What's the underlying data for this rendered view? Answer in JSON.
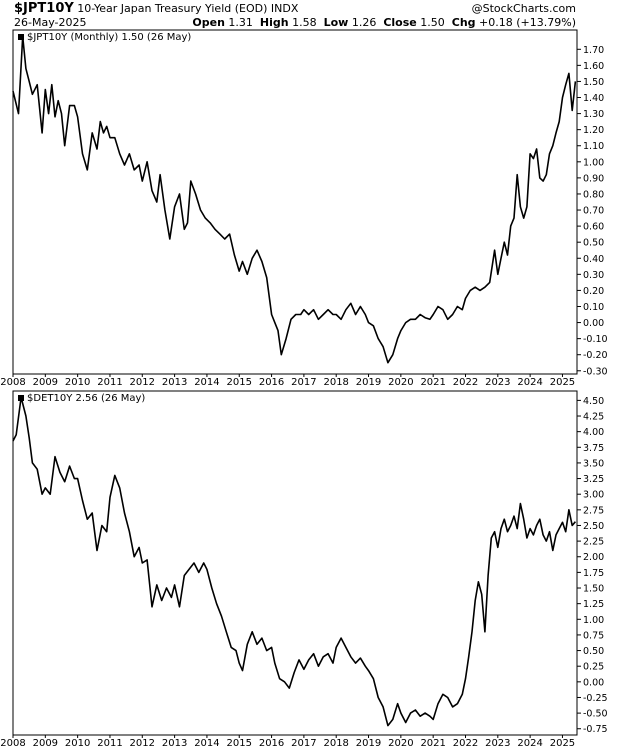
{
  "header": {
    "symbol": "$JPT10Y",
    "name": "10-Year Japan Treasury Yield (EOD)",
    "exchange": "INDX",
    "date": "26-May-2025",
    "watermark": "@StockCharts.com",
    "open_label": "Open",
    "open": "1.31",
    "high_label": "High",
    "high": "1.58",
    "low_label": "Low",
    "low": "1.26",
    "close_label": "Close",
    "close": "1.50",
    "chg_label": "Chg",
    "chg": "+0.18 (+13.79%)"
  },
  "chart_data": [
    {
      "type": "line",
      "legend": "$JPT10Y (Monthly) 1.50 (26 May)",
      "ylim": [
        -0.32,
        1.82
      ],
      "yticks": [
        -0.3,
        -0.2,
        -0.1,
        0.0,
        0.1,
        0.2,
        0.3,
        0.4,
        0.5,
        0.6,
        0.7,
        0.8,
        0.9,
        1.0,
        1.1,
        1.2,
        1.3,
        1.4,
        1.5,
        1.6,
        1.7
      ],
      "ytick_labels": [
        "-0.30",
        "-0.20",
        "-0.10",
        "0.00",
        "0.10",
        "0.20",
        "0.30",
        "0.40",
        "0.50",
        "0.60",
        "0.70",
        "0.80",
        "0.90",
        "1.00",
        "1.10",
        "1.20",
        "1.30",
        "1.40",
        "1.50",
        "1.60",
        "1.70"
      ],
      "xlim": [
        2008.0,
        2025.45
      ],
      "xticks": [
        2008,
        2009,
        2010,
        2011,
        2012,
        2013,
        2014,
        2015,
        2016,
        2017,
        2018,
        2019,
        2020,
        2021,
        2022,
        2023,
        2024,
        2025
      ],
      "xtick_labels": [
        "2008",
        "2009",
        "2010",
        "2011",
        "2012",
        "2013",
        "2014",
        "2015",
        "2016",
        "2017",
        "2018",
        "2019",
        "2020",
        "2021",
        "2022",
        "2023",
        "2024",
        "2025"
      ],
      "x": [
        2008.0,
        2008.17,
        2008.3,
        2008.4,
        2008.5,
        2008.6,
        2008.75,
        2008.9,
        2009.0,
        2009.1,
        2009.2,
        2009.3,
        2009.4,
        2009.5,
        2009.6,
        2009.75,
        2009.9,
        2010.0,
        2010.15,
        2010.3,
        2010.45,
        2010.6,
        2010.7,
        2010.8,
        2010.9,
        2011.0,
        2011.15,
        2011.3,
        2011.45,
        2011.6,
        2011.75,
        2011.9,
        2012.0,
        2012.15,
        2012.3,
        2012.45,
        2012.55,
        2012.7,
        2012.85,
        2013.0,
        2013.15,
        2013.3,
        2013.4,
        2013.5,
        2013.65,
        2013.8,
        2013.95,
        2014.1,
        2014.25,
        2014.4,
        2014.55,
        2014.7,
        2014.85,
        2015.0,
        2015.1,
        2015.25,
        2015.4,
        2015.55,
        2015.7,
        2015.85,
        2016.0,
        2016.1,
        2016.2,
        2016.3,
        2016.45,
        2016.6,
        2016.75,
        2016.9,
        2017.0,
        2017.15,
        2017.3,
        2017.45,
        2017.6,
        2017.75,
        2017.9,
        2018.0,
        2018.15,
        2018.3,
        2018.45,
        2018.6,
        2018.75,
        2018.9,
        2019.0,
        2019.15,
        2019.3,
        2019.45,
        2019.6,
        2019.75,
        2019.9,
        2020.0,
        2020.15,
        2020.3,
        2020.45,
        2020.6,
        2020.75,
        2020.9,
        2021.0,
        2021.15,
        2021.3,
        2021.45,
        2021.6,
        2021.75,
        2021.9,
        2022.0,
        2022.15,
        2022.3,
        2022.45,
        2022.6,
        2022.75,
        2022.9,
        2023.0,
        2023.1,
        2023.2,
        2023.3,
        2023.4,
        2023.5,
        2023.6,
        2023.7,
        2023.8,
        2023.9,
        2024.0,
        2024.1,
        2024.2,
        2024.3,
        2024.4,
        2024.5,
        2024.6,
        2024.7,
        2024.8,
        2024.9,
        2025.0,
        2025.1,
        2025.2,
        2025.3,
        2025.4
      ],
      "y": [
        1.44,
        1.3,
        1.78,
        1.58,
        1.5,
        1.42,
        1.48,
        1.18,
        1.45,
        1.3,
        1.48,
        1.28,
        1.38,
        1.3,
        1.1,
        1.35,
        1.35,
        1.28,
        1.05,
        0.95,
        1.18,
        1.08,
        1.25,
        1.18,
        1.22,
        1.15,
        1.15,
        1.05,
        0.98,
        1.05,
        0.95,
        0.98,
        0.88,
        1.0,
        0.82,
        0.75,
        0.92,
        0.7,
        0.52,
        0.72,
        0.8,
        0.58,
        0.62,
        0.88,
        0.8,
        0.7,
        0.65,
        0.62,
        0.58,
        0.55,
        0.52,
        0.55,
        0.42,
        0.32,
        0.38,
        0.3,
        0.4,
        0.45,
        0.38,
        0.28,
        0.05,
        0.0,
        -0.05,
        -0.2,
        -0.1,
        0.02,
        0.05,
        0.05,
        0.08,
        0.05,
        0.08,
        0.02,
        0.05,
        0.08,
        0.05,
        0.05,
        0.02,
        0.08,
        0.12,
        0.05,
        0.1,
        0.05,
        0.0,
        -0.02,
        -0.1,
        -0.15,
        -0.25,
        -0.2,
        -0.1,
        -0.05,
        0.0,
        0.02,
        0.02,
        0.05,
        0.03,
        0.02,
        0.05,
        0.1,
        0.08,
        0.02,
        0.05,
        0.1,
        0.08,
        0.15,
        0.2,
        0.22,
        0.2,
        0.22,
        0.25,
        0.45,
        0.3,
        0.4,
        0.5,
        0.42,
        0.6,
        0.65,
        0.92,
        0.72,
        0.65,
        0.72,
        1.05,
        1.02,
        1.08,
        0.9,
        0.88,
        0.92,
        1.05,
        1.1,
        1.18,
        1.25,
        1.4,
        1.48,
        1.55,
        1.32,
        1.5
      ]
    },
    {
      "type": "line",
      "legend": "$DET10Y 2.56 (26 May)",
      "ylim": [
        -0.85,
        4.65
      ],
      "yticks": [
        -0.75,
        -0.5,
        -0.25,
        0.0,
        0.25,
        0.5,
        0.75,
        1.0,
        1.25,
        1.5,
        1.75,
        2.0,
        2.25,
        2.5,
        2.75,
        3.0,
        3.25,
        3.5,
        3.75,
        4.0,
        4.25,
        4.5
      ],
      "ytick_labels": [
        "-0.75",
        "-0.50",
        "-0.25",
        "0.00",
        "0.25",
        "0.50",
        "0.75",
        "1.00",
        "1.25",
        "1.50",
        "1.75",
        "2.00",
        "2.25",
        "2.50",
        "2.75",
        "3.00",
        "3.25",
        "3.50",
        "3.75",
        "4.00",
        "4.25",
        "4.50"
      ],
      "xlim": [
        2008.0,
        2025.45
      ],
      "xticks": [
        2008,
        2009,
        2010,
        2011,
        2012,
        2013,
        2014,
        2015,
        2016,
        2017,
        2018,
        2019,
        2020,
        2021,
        2022,
        2023,
        2024,
        2025
      ],
      "xtick_labels": [
        "2008",
        "2009",
        "2010",
        "2011",
        "2012",
        "2013",
        "2014",
        "2015",
        "2016",
        "2017",
        "2018",
        "2019",
        "2020",
        "2021",
        "2022",
        "2023",
        "2024",
        "2025"
      ],
      "x": [
        2008.0,
        2008.1,
        2008.25,
        2008.4,
        2008.5,
        2008.6,
        2008.75,
        2008.9,
        2009.0,
        2009.15,
        2009.3,
        2009.45,
        2009.6,
        2009.75,
        2009.9,
        2010.0,
        2010.15,
        2010.3,
        2010.45,
        2010.6,
        2010.75,
        2010.9,
        2011.0,
        2011.15,
        2011.3,
        2011.45,
        2011.6,
        2011.75,
        2011.9,
        2012.0,
        2012.15,
        2012.3,
        2012.45,
        2012.6,
        2012.75,
        2012.9,
        2013.0,
        2013.15,
        2013.3,
        2013.45,
        2013.6,
        2013.75,
        2013.9,
        2014.0,
        2014.15,
        2014.3,
        2014.45,
        2014.6,
        2014.75,
        2014.9,
        2015.0,
        2015.1,
        2015.25,
        2015.4,
        2015.55,
        2015.7,
        2015.85,
        2016.0,
        2016.1,
        2016.25,
        2016.4,
        2016.55,
        2016.7,
        2016.85,
        2017.0,
        2017.15,
        2017.3,
        2017.45,
        2017.6,
        2017.75,
        2017.9,
        2018.0,
        2018.15,
        2018.3,
        2018.45,
        2018.6,
        2018.75,
        2018.9,
        2019.0,
        2019.15,
        2019.3,
        2019.45,
        2019.6,
        2019.75,
        2019.9,
        2020.0,
        2020.15,
        2020.3,
        2020.45,
        2020.6,
        2020.75,
        2020.9,
        2021.0,
        2021.15,
        2021.3,
        2021.45,
        2021.6,
        2021.75,
        2021.9,
        2022.0,
        2022.1,
        2022.2,
        2022.3,
        2022.4,
        2022.5,
        2022.6,
        2022.7,
        2022.8,
        2022.9,
        2023.0,
        2023.1,
        2023.2,
        2023.3,
        2023.4,
        2023.5,
        2023.6,
        2023.7,
        2023.8,
        2023.9,
        2024.0,
        2024.1,
        2024.2,
        2024.3,
        2024.4,
        2024.5,
        2024.6,
        2024.7,
        2024.8,
        2024.9,
        2025.0,
        2025.1,
        2025.2,
        2025.3,
        2025.4
      ],
      "y": [
        3.85,
        3.95,
        4.55,
        4.25,
        3.9,
        3.5,
        3.4,
        3.0,
        3.1,
        3.0,
        3.6,
        3.35,
        3.2,
        3.45,
        3.25,
        3.25,
        2.9,
        2.6,
        2.7,
        2.1,
        2.5,
        2.4,
        2.95,
        3.3,
        3.1,
        2.7,
        2.4,
        2.0,
        2.15,
        1.9,
        1.95,
        1.2,
        1.55,
        1.3,
        1.5,
        1.35,
        1.55,
        1.2,
        1.7,
        1.8,
        1.9,
        1.75,
        1.9,
        1.8,
        1.5,
        1.25,
        1.05,
        0.8,
        0.55,
        0.5,
        0.3,
        0.18,
        0.6,
        0.8,
        0.6,
        0.7,
        0.5,
        0.55,
        0.3,
        0.05,
        0.0,
        -0.1,
        0.15,
        0.35,
        0.2,
        0.35,
        0.45,
        0.25,
        0.4,
        0.45,
        0.3,
        0.55,
        0.7,
        0.55,
        0.4,
        0.3,
        0.38,
        0.25,
        0.18,
        0.05,
        -0.25,
        -0.4,
        -0.7,
        -0.6,
        -0.35,
        -0.5,
        -0.65,
        -0.5,
        -0.45,
        -0.55,
        -0.5,
        -0.55,
        -0.6,
        -0.35,
        -0.2,
        -0.25,
        -0.4,
        -0.35,
        -0.2,
        0.05,
        0.4,
        0.8,
        1.3,
        1.6,
        1.4,
        0.8,
        1.7,
        2.3,
        2.4,
        2.15,
        2.45,
        2.6,
        2.4,
        2.5,
        2.65,
        2.45,
        2.85,
        2.6,
        2.3,
        2.45,
        2.35,
        2.5,
        2.6,
        2.35,
        2.25,
        2.4,
        2.1,
        2.35,
        2.45,
        2.55,
        2.4,
        2.75,
        2.5,
        2.56
      ]
    }
  ]
}
